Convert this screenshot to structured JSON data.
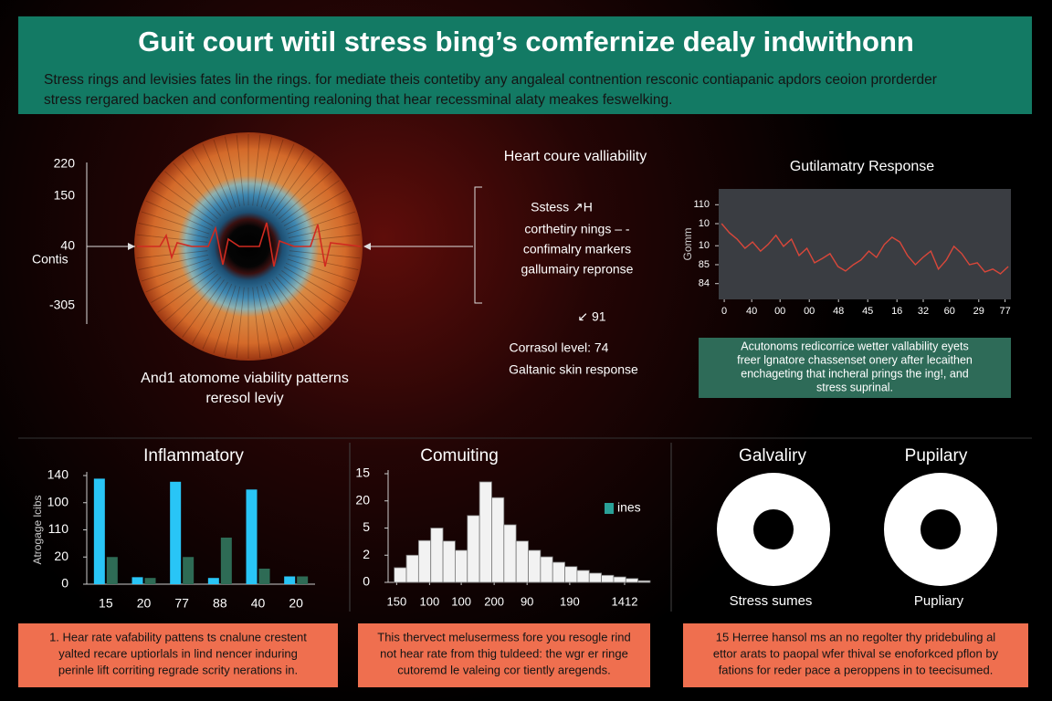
{
  "header": {
    "title": "Guit court witil stress bing’s comfernize dealy indwithonn",
    "subtitle": [
      "Stress rings and levisies fates lin the rings. for mediate theis contetiby any angaleal contnention resconic contiapanic apdors ceoion prorderder",
      "stress rergared backen and conformenting realoning that hear recessminal alaty meakes feswelking."
    ]
  },
  "eye_panel": {
    "yticks": [
      "220",
      "150",
      "40",
      "-305"
    ],
    "axis_label": "Contis",
    "caption": [
      "And1 atomome viability patterns",
      "reresol leviy"
    ]
  },
  "annotations": {
    "title": "Heart coure valliability",
    "items": [
      "Sstess ↗H",
      "corthetiry nings – -",
      "confimalry markers",
      "gallumairy repronse"
    ],
    "marker": "↙ 91",
    "lines": [
      "Corrasol level: 74",
      "Galtanic skin response"
    ]
  },
  "note": [
    "Acutonoms redicorrice wetter vallability eyets",
    "freer lgnatore chassenset onery after lecaithen",
    "enchageting that incheral prings the ing!, and",
    "stress suprinal."
  ],
  "chart_data": [
    {
      "type": "line",
      "title": "Gutilamatry Response",
      "y_label": "Gomm",
      "x": [
        1,
        3.7,
        6.3,
        9,
        11.6,
        14.3,
        16.9,
        19.6,
        22.2,
        24.9,
        27.5,
        30.2,
        32.8,
        35.5,
        38.1,
        40.8,
        43.4,
        46.1,
        48.7,
        51.4,
        54,
        56.7,
        59.3,
        62,
        64.6,
        67.3,
        69.9,
        72.6,
        75.2,
        77.9,
        80.5,
        83.2,
        85.8,
        88.5,
        91.1,
        93.8,
        96.4,
        99.1
      ],
      "series": [
        {
          "color": "#d9473a",
          "values": [
            104,
            101.1,
            99.1,
            96.2,
            98.2,
            95.3,
            97.4,
            100.3,
            96.8,
            99.1,
            93.9,
            96.2,
            91.6,
            93,
            94.5,
            90.4,
            89,
            91,
            92.5,
            95.3,
            93.3,
            97.4,
            99.7,
            98.2,
            93.9,
            91,
            93.3,
            95.3,
            89.6,
            92.5,
            96.8,
            94.5,
            91,
            91.6,
            88.7,
            89.6,
            88.1,
            90.4
          ]
        }
      ],
      "xlim": [
        0,
        100
      ],
      "xticks": [
        {
          "value": 1.9,
          "label": "0"
        },
        {
          "value": 11.3,
          "label": "40"
        },
        {
          "value": 21,
          "label": "00"
        },
        {
          "value": 31,
          "label": "00"
        },
        {
          "value": 41,
          "label": "48"
        },
        {
          "value": 51,
          "label": "45"
        },
        {
          "value": 61,
          "label": "16"
        },
        {
          "value": 70,
          "label": "32"
        },
        {
          "value": 79,
          "label": "60"
        },
        {
          "value": 89,
          "label": "29"
        },
        {
          "value": 98,
          "label": "77"
        }
      ],
      "ylim": [
        80,
        115
      ],
      "yticks": [
        110,
        {
          "value": 104,
          "label": "10"
        },
        {
          "value": 97,
          "label": "10"
        },
        {
          "value": 91,
          "label": "85"
        },
        {
          "value": 85,
          "label": "84"
        }
      ],
      "background": "#3a3d42"
    },
    {
      "type": "bar",
      "title": "Inflammatory",
      "y_label": "Atrogage lcibs",
      "categories": [
        "15",
        "20",
        "77",
        "88",
        "40",
        "20"
      ],
      "series": [
        {
          "color": "#29c5f6",
          "values": [
            136,
            9,
            132,
            8,
            122,
            10
          ]
        },
        {
          "color": "#2e6b55",
          "values": [
            35,
            8,
            35,
            60,
            20,
            10
          ]
        }
      ],
      "ylim": [
        0,
        140
      ],
      "yticks": [
        0,
        {
          "value": 35,
          "label": "20"
        },
        {
          "value": 70,
          "label": "110"
        },
        {
          "value": 105,
          "label": "100"
        },
        140
      ]
    },
    {
      "type": "histogram",
      "title": "Comuiting",
      "bins": [
        0,
        1,
        2,
        3,
        4,
        5,
        6,
        7,
        8,
        9,
        10,
        11,
        12,
        13,
        14,
        15,
        16,
        17,
        18,
        19,
        20,
        21
      ],
      "series": [
        {
          "name": "ines",
          "color": "#f2f2f2",
          "values": [
            2.7,
            5,
            7.7,
            10,
            7.6,
            5.9,
            12.3,
            18.5,
            15.6,
            10.6,
            7.6,
            5.9,
            4.7,
            3.7,
            2.9,
            2.2,
            1.7,
            1.3,
            1,
            0.7,
            0.3
          ]
        }
      ],
      "legend_color": "#2aa198",
      "xlim": [
        -0.5,
        21
      ],
      "xticks": [
        {
          "value": 0.2,
          "label": "150"
        },
        {
          "value": 2.9,
          "label": "100"
        },
        {
          "value": 5.5,
          "label": "100"
        },
        {
          "value": 8.2,
          "label": "200"
        },
        {
          "value": 10.9,
          "label": "90"
        },
        {
          "value": 14.4,
          "label": "190"
        },
        {
          "value": 18.9,
          "label": "1412"
        }
      ],
      "ylim": [
        0,
        20
      ],
      "yticks": [
        0,
        {
          "value": 5,
          "label": "2"
        },
        {
          "value": 10,
          "label": "5"
        },
        {
          "value": 15,
          "label": "20"
        },
        {
          "value": 20,
          "label": "15"
        }
      ]
    }
  ],
  "donuts": [
    {
      "title": "Galvaliry",
      "caption": "Stress sumes"
    },
    {
      "title": "Pupilary",
      "caption": "Pupliary"
    }
  ],
  "footer_notes": [
    [
      "1. Hear rate vafability pattens ts cnalune crestent",
      "yalted recare uptiorlals in lind nencer induring",
      "perinle lift corriting regrade scrity nerations in."
    ],
    [
      "This thervect melusermess fore you resogle rind",
      "not hear rate from thig tuldeed: the wgr er ringe",
      "cutoremd le valeing cor tiently aregends."
    ],
    [
      "15 Herree hansol ms an no regolter thy pridebuling al",
      "ettor arats to paopal wfer thival se enoforkced pflon by",
      "fations for reder pace a peroppens in to teecisumed."
    ]
  ]
}
